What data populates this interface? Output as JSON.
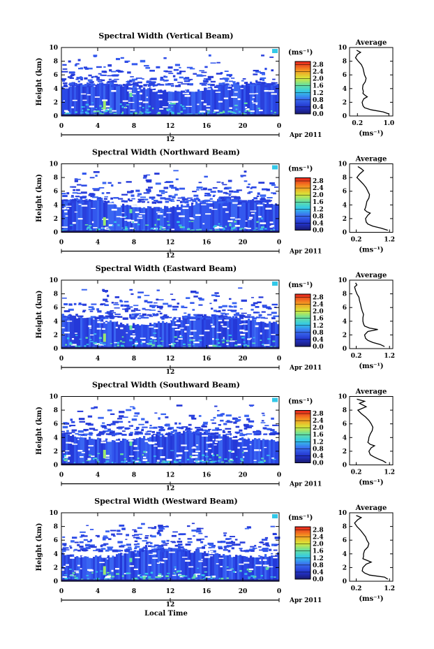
{
  "chart_data": [
    {
      "type": "heatmap",
      "title": "Spectral Width (Vertical Beam)",
      "ylabel": "Height (km)",
      "xlabel": "",
      "x_ticks": [
        "0",
        "4",
        "8",
        "12",
        "16",
        "20",
        "0"
      ],
      "y_ticks": [
        "0",
        "2",
        "4",
        "6",
        "8",
        "10"
      ],
      "xlim": [
        0,
        24
      ],
      "ylim": [
        0,
        10
      ],
      "date_tick": "12",
      "date_label": "Apr 2011",
      "colorbar": {
        "unit": "(ms⁻¹)",
        "ticks": [
          "0.0",
          "0.4",
          "0.8",
          "1.2",
          "1.6",
          "2.0",
          "2.4",
          "2.8"
        ]
      },
      "profile": {
        "title": "Average",
        "xlabel": "(ms⁻¹)",
        "x_ticks": [
          "0.2",
          "1.0"
        ],
        "xlim": [
          0.0,
          1.1
        ],
        "y_ticks": [
          "0",
          "2",
          "4",
          "6",
          "8",
          "10"
        ],
        "heights": [
          0.3,
          0.6,
          0.9,
          1.2,
          1.5,
          2.0,
          2.5,
          2.8,
          3.0,
          3.3,
          3.6,
          4.0,
          4.5,
          5.0,
          5.5,
          6.0,
          6.5,
          7.0,
          7.5,
          8.0,
          8.5,
          9.0,
          9.3,
          9.6
        ],
        "values": [
          1.0,
          0.85,
          0.55,
          0.38,
          0.34,
          0.32,
          0.36,
          0.45,
          0.4,
          0.34,
          0.35,
          0.33,
          0.34,
          0.4,
          0.42,
          0.38,
          0.36,
          0.34,
          0.3,
          0.22,
          0.15,
          0.2,
          0.28,
          0.18
        ]
      }
    },
    {
      "type": "heatmap",
      "title": "Spectral Width (Northward Beam)",
      "ylabel": "Height (km)",
      "xlabel": "",
      "x_ticks": [
        "0",
        "4",
        "8",
        "12",
        "16",
        "20",
        "0"
      ],
      "y_ticks": [
        "0",
        "2",
        "4",
        "6",
        "8",
        "10"
      ],
      "xlim": [
        0,
        24
      ],
      "ylim": [
        0,
        10
      ],
      "date_tick": "12",
      "date_label": "Apr 2011",
      "colorbar": {
        "unit": "(ms⁻¹)",
        "ticks": [
          "0.0",
          "0.4",
          "0.8",
          "1.2",
          "1.6",
          "2.0",
          "2.4",
          "2.8"
        ]
      },
      "profile": {
        "title": "Average",
        "xlabel": "(ms⁻¹)",
        "x_ticks": [
          "0.2",
          "1.2"
        ],
        "xlim": [
          0.0,
          1.3
        ],
        "y_ticks": [
          "0",
          "2",
          "4",
          "6",
          "8",
          "10"
        ],
        "heights": [
          0.3,
          0.6,
          0.9,
          1.2,
          1.5,
          2.0,
          2.5,
          2.8,
          3.0,
          3.3,
          3.6,
          4.0,
          4.5,
          5.0,
          5.5,
          6.0,
          6.5,
          7.0,
          7.5,
          8.0,
          8.5,
          9.0,
          9.3,
          9.6
        ],
        "values": [
          1.15,
          0.95,
          0.7,
          0.55,
          0.5,
          0.48,
          0.55,
          0.62,
          0.52,
          0.45,
          0.48,
          0.5,
          0.52,
          0.58,
          0.6,
          0.55,
          0.5,
          0.42,
          0.32,
          0.22,
          0.3,
          0.42,
          0.35,
          0.25
        ]
      }
    },
    {
      "type": "heatmap",
      "title": "Spectral Width (Eastward Beam)",
      "ylabel": "Height (km)",
      "xlabel": "",
      "x_ticks": [
        "0",
        "4",
        "8",
        "12",
        "16",
        "20",
        "0"
      ],
      "y_ticks": [
        "0",
        "2",
        "4",
        "6",
        "8",
        "10"
      ],
      "xlim": [
        0,
        24
      ],
      "ylim": [
        0,
        10
      ],
      "date_tick": "12",
      "date_label": "Apr 2011",
      "colorbar": {
        "unit": "(ms⁻¹)",
        "ticks": [
          "0.0",
          "0.4",
          "0.8",
          "1.2",
          "1.6",
          "2.0",
          "2.4",
          "2.8"
        ]
      },
      "profile": {
        "title": "Average",
        "xlabel": "(ms⁻¹)",
        "x_ticks": [
          "0.2",
          "1.2"
        ],
        "xlim": [
          0.0,
          1.3
        ],
        "y_ticks": [
          "0",
          "2",
          "4",
          "6",
          "8",
          "10"
        ],
        "heights": [
          0.3,
          0.6,
          0.9,
          1.2,
          1.5,
          2.0,
          2.5,
          2.8,
          3.0,
          3.3,
          3.6,
          4.0,
          4.5,
          5.0,
          5.5,
          6.0,
          6.5,
          7.0,
          7.5,
          8.0,
          8.5,
          9.0,
          9.3,
          9.6
        ],
        "values": [
          1.05,
          0.92,
          0.7,
          0.55,
          0.48,
          0.45,
          0.55,
          0.85,
          0.6,
          0.45,
          0.42,
          0.4,
          0.4,
          0.42,
          0.38,
          0.35,
          0.33,
          0.3,
          0.28,
          0.22,
          0.18,
          0.15,
          0.22,
          0.18
        ]
      }
    },
    {
      "type": "heatmap",
      "title": "Spectral Width (Southward Beam)",
      "ylabel": "Height (km)",
      "xlabel": "",
      "x_ticks": [
        "0",
        "4",
        "8",
        "12",
        "16",
        "20",
        "0"
      ],
      "y_ticks": [
        "0",
        "2",
        "4",
        "6",
        "8",
        "10"
      ],
      "xlim": [
        0,
        24
      ],
      "ylim": [
        0,
        10
      ],
      "date_tick": "12",
      "date_label": "Apr 2011",
      "colorbar": {
        "unit": "(ms⁻¹)",
        "ticks": [
          "0.0",
          "0.4",
          "0.8",
          "1.2",
          "1.6",
          "2.0",
          "2.4",
          "2.8"
        ]
      },
      "profile": {
        "title": "Average",
        "xlabel": "(ms⁻¹)",
        "x_ticks": [
          "0.2",
          "1.2"
        ],
        "xlim": [
          0.0,
          1.3
        ],
        "y_ticks": [
          "0",
          "2",
          "4",
          "6",
          "8",
          "10"
        ],
        "heights": [
          0.3,
          0.6,
          0.9,
          1.2,
          1.5,
          2.0,
          2.5,
          2.8,
          3.0,
          3.3,
          3.6,
          4.0,
          4.5,
          5.0,
          5.5,
          6.0,
          6.5,
          7.0,
          7.5,
          8.0,
          8.5,
          9.0,
          9.3,
          9.6
        ],
        "values": [
          1.1,
          1.0,
          0.85,
          0.72,
          0.62,
          0.58,
          0.65,
          0.75,
          0.62,
          0.55,
          0.57,
          0.58,
          0.62,
          0.68,
          0.7,
          0.65,
          0.58,
          0.48,
          0.35,
          0.25,
          0.5,
          0.3,
          0.45,
          0.22
        ]
      }
    },
    {
      "type": "heatmap",
      "title": "Spectral Width (Westward Beam)",
      "ylabel": "Height (km)",
      "xlabel": "Local Time",
      "x_ticks": [
        "0",
        "4",
        "8",
        "12",
        "16",
        "20",
        "0"
      ],
      "y_ticks": [
        "0",
        "2",
        "4",
        "6",
        "8",
        "10"
      ],
      "xlim": [
        0,
        24
      ],
      "ylim": [
        0,
        10
      ],
      "date_tick": "12",
      "date_label": "Apr 2011",
      "colorbar": {
        "unit": "(ms⁻¹)",
        "ticks": [
          "0.0",
          "0.4",
          "0.8",
          "1.2",
          "1.6",
          "2.0",
          "2.4",
          "2.8"
        ]
      },
      "profile": {
        "title": "Average",
        "xlabel": "(ms⁻¹)",
        "x_ticks": [
          "0.2",
          "1.2"
        ],
        "xlim": [
          0.0,
          1.3
        ],
        "y_ticks": [
          "0",
          "2",
          "4",
          "6",
          "8",
          "10"
        ],
        "heights": [
          0.3,
          0.6,
          0.9,
          1.2,
          1.5,
          2.0,
          2.5,
          2.8,
          3.0,
          3.3,
          3.6,
          4.0,
          4.5,
          5.0,
          5.5,
          6.0,
          6.5,
          7.0,
          7.5,
          8.0,
          8.5,
          9.0,
          9.3,
          9.6
        ],
        "values": [
          1.15,
          1.05,
          0.6,
          0.45,
          0.38,
          0.4,
          0.5,
          0.65,
          0.55,
          0.4,
          0.42,
          0.42,
          0.45,
          0.55,
          0.58,
          0.52,
          0.48,
          0.4,
          0.32,
          0.22,
          0.15,
          0.25,
          0.35,
          0.2
        ]
      }
    }
  ]
}
